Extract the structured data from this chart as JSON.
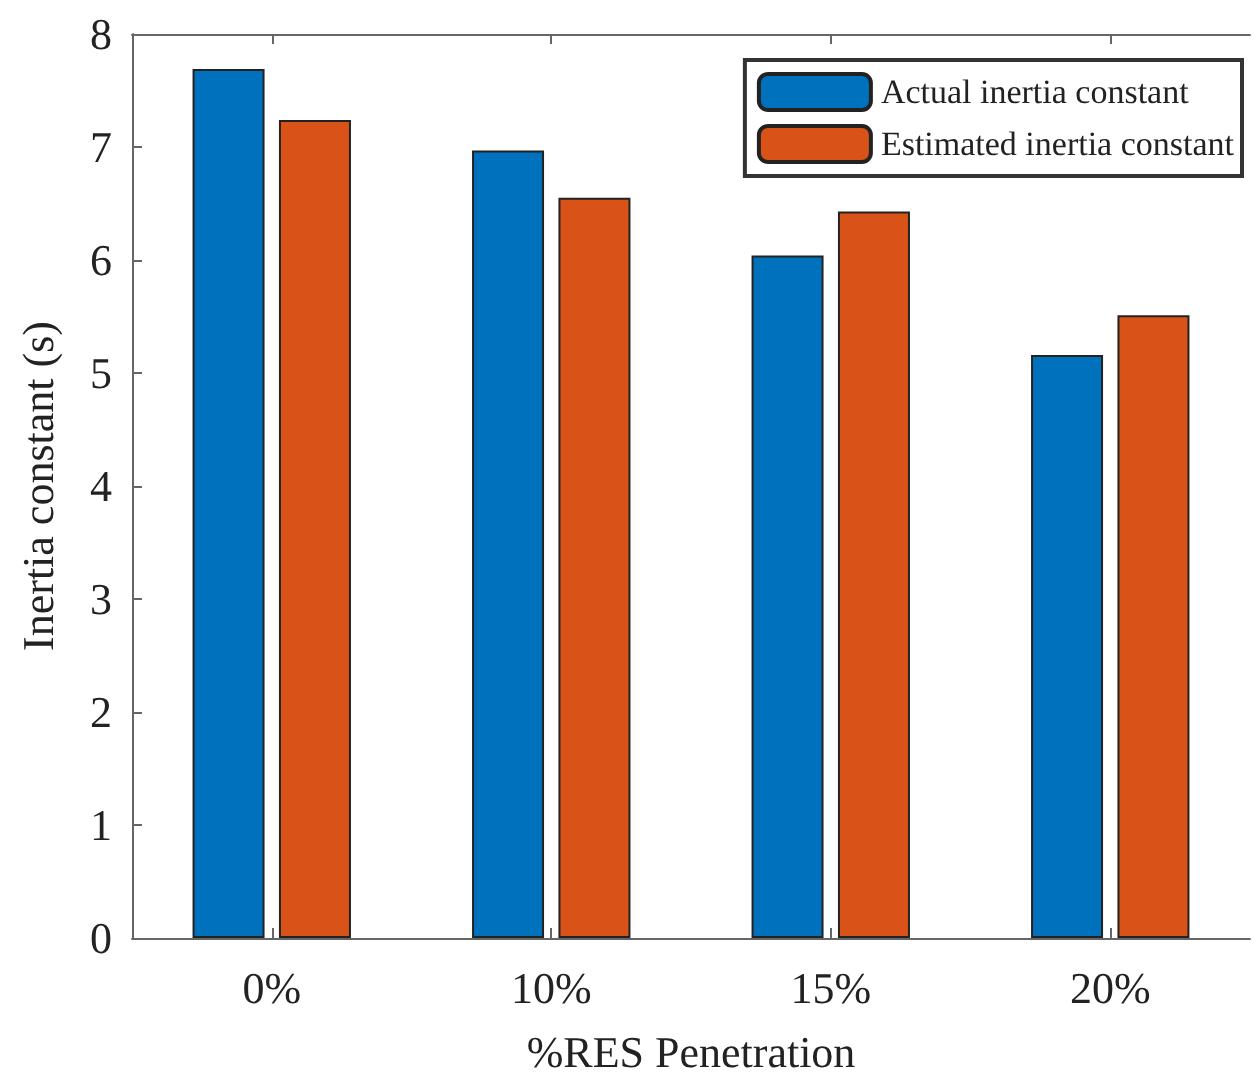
{
  "chart_data": {
    "type": "bar",
    "xlabel": "%RES Penetration",
    "ylabel": "Inertia constant (s)",
    "categories": [
      "0%",
      "10%",
      "15%",
      "20%"
    ],
    "series": [
      {
        "name": "Actual inertia constant",
        "color": "#0072bd",
        "values": [
          7.69,
          6.97,
          6.04,
          5.16
        ]
      },
      {
        "name": "Estimated inertia constant",
        "color": "#d95319",
        "values": [
          7.24,
          6.55,
          6.43,
          5.51
        ]
      }
    ],
    "ylim": [
      0,
      8
    ],
    "yticks": [
      0,
      1,
      2,
      3,
      4,
      5,
      6,
      7,
      8
    ],
    "grid": false,
    "legend": "top right"
  }
}
